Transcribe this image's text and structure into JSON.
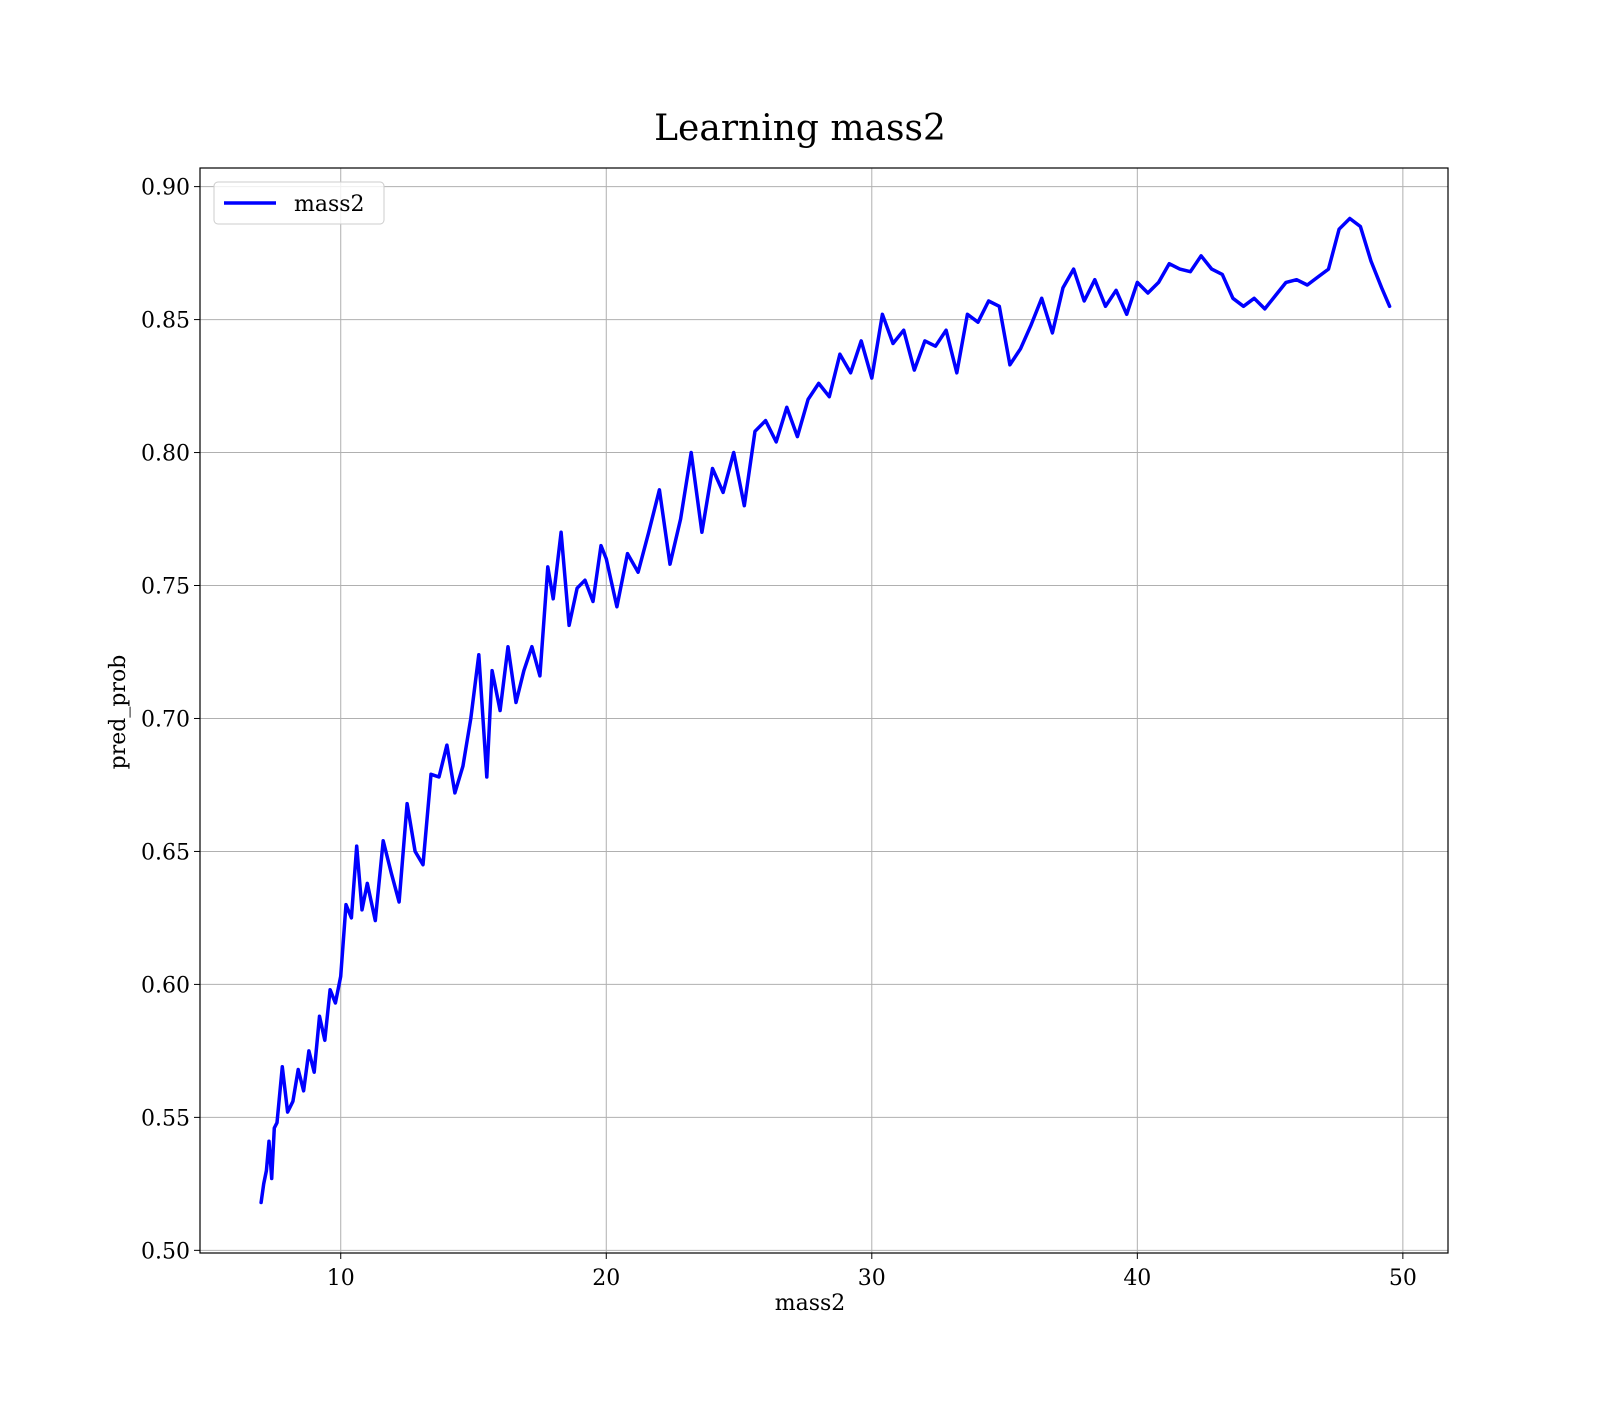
{
  "chart_data": {
    "type": "line",
    "title": "Learning mass2",
    "xlabel": "mass2",
    "ylabel": "pred_prob",
    "xlim": [
      4.7,
      51.7
    ],
    "ylim": [
      0.499,
      0.907
    ],
    "xticks": [
      10,
      20,
      30,
      40,
      50
    ],
    "yticks": [
      0.5,
      0.55,
      0.6,
      0.65,
      0.7,
      0.75,
      0.8,
      0.85,
      0.9
    ],
    "xtick_labels": [
      "10",
      "20",
      "30",
      "40",
      "50"
    ],
    "ytick_labels": [
      "0.50",
      "0.55",
      "0.60",
      "0.65",
      "0.70",
      "0.75",
      "0.80",
      "0.85",
      "0.90"
    ],
    "grid": true,
    "legend_position": "top-left",
    "series": [
      {
        "name": "mass2",
        "color": "#0000ff",
        "x": [
          7.0,
          7.1,
          7.2,
          7.3,
          7.4,
          7.5,
          7.6,
          7.8,
          8.0,
          8.2,
          8.4,
          8.6,
          8.8,
          9.0,
          9.2,
          9.4,
          9.6,
          9.8,
          10.0,
          10.2,
          10.4,
          10.6,
          10.8,
          11.0,
          11.3,
          11.6,
          11.9,
          12.2,
          12.5,
          12.8,
          13.1,
          13.4,
          13.7,
          14.0,
          14.3,
          14.6,
          14.9,
          15.2,
          15.5,
          15.7,
          16.0,
          16.3,
          16.6,
          16.9,
          17.2,
          17.5,
          17.8,
          18.0,
          18.3,
          18.6,
          18.9,
          19.2,
          19.5,
          19.8,
          20.0,
          20.4,
          20.8,
          21.2,
          21.6,
          22.0,
          22.4,
          22.8,
          23.2,
          23.6,
          24.0,
          24.4,
          24.8,
          25.2,
          25.6,
          26.0,
          26.4,
          26.8,
          27.2,
          27.6,
          28.0,
          28.4,
          28.8,
          29.2,
          29.6,
          30.0,
          30.4,
          30.8,
          31.2,
          31.6,
          32.0,
          32.4,
          32.8,
          33.2,
          33.6,
          34.0,
          34.4,
          34.8,
          35.2,
          35.6,
          36.0,
          36.4,
          36.8,
          37.2,
          37.6,
          38.0,
          38.4,
          38.8,
          39.2,
          39.6,
          40.0,
          40.4,
          40.8,
          41.2,
          41.6,
          42.0,
          42.4,
          42.8,
          43.2,
          43.6,
          44.0,
          44.4,
          44.8,
          45.2,
          45.6,
          46.0,
          46.4,
          46.8,
          47.2,
          47.6,
          48.0,
          48.4,
          48.8,
          49.2,
          49.5
        ],
        "values": [
          0.518,
          0.525,
          0.53,
          0.541,
          0.527,
          0.546,
          0.548,
          0.569,
          0.552,
          0.556,
          0.568,
          0.56,
          0.575,
          0.567,
          0.588,
          0.579,
          0.598,
          0.593,
          0.603,
          0.63,
          0.625,
          0.652,
          0.628,
          0.638,
          0.624,
          0.654,
          0.642,
          0.631,
          0.668,
          0.65,
          0.645,
          0.679,
          0.678,
          0.69,
          0.672,
          0.682,
          0.7,
          0.724,
          0.678,
          0.718,
          0.703,
          0.727,
          0.706,
          0.718,
          0.727,
          0.716,
          0.757,
          0.745,
          0.77,
          0.735,
          0.749,
          0.752,
          0.744,
          0.765,
          0.76,
          0.742,
          0.762,
          0.755,
          0.77,
          0.786,
          0.758,
          0.775,
          0.8,
          0.77,
          0.794,
          0.785,
          0.8,
          0.78,
          0.808,
          0.812,
          0.804,
          0.817,
          0.806,
          0.82,
          0.826,
          0.821,
          0.837,
          0.83,
          0.842,
          0.828,
          0.852,
          0.841,
          0.846,
          0.831,
          0.842,
          0.84,
          0.846,
          0.83,
          0.852,
          0.849,
          0.857,
          0.855,
          0.833,
          0.839,
          0.848,
          0.858,
          0.845,
          0.862,
          0.869,
          0.857,
          0.865,
          0.855,
          0.861,
          0.852,
          0.864,
          0.86,
          0.864,
          0.871,
          0.869,
          0.868,
          0.874,
          0.869,
          0.867,
          0.858,
          0.855,
          0.858,
          0.854,
          0.859,
          0.864,
          0.865,
          0.863,
          0.866,
          0.869,
          0.884,
          0.888,
          0.885,
          0.872,
          0.862,
          0.855
        ]
      }
    ]
  }
}
